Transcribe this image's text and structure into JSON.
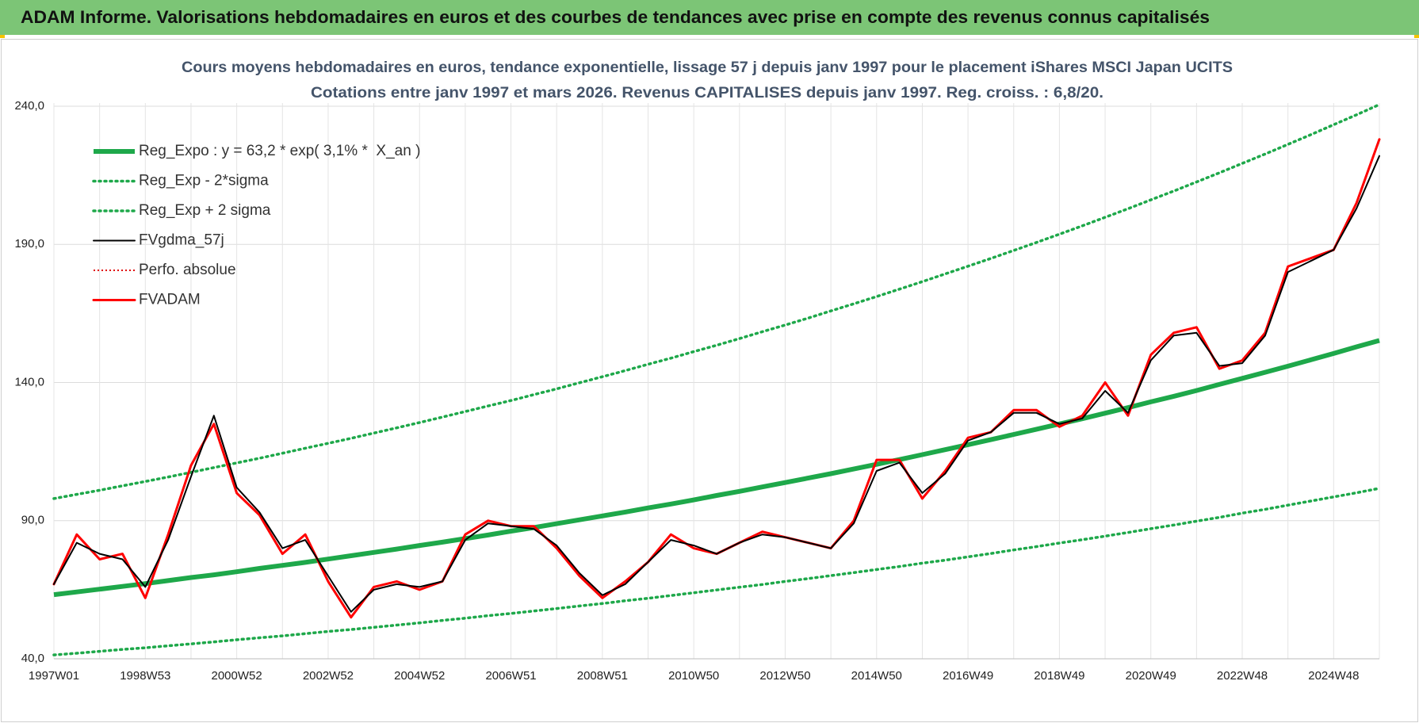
{
  "header": {
    "title": "ADAM Informe. Valorisations hebdomadaires en euros et des courbes de tendances avec prise en compte des revenus connus capitalisés"
  },
  "chart_data": {
    "type": "line",
    "title": "Cours moyens hebdomadaires en euros, tendance exponentielle, lissage 57 j depuis janv 1997 pour le placement iShares MSCI Japan UCITS",
    "subtitle": "Cotations entre janv 1997 et mars 2026. Revenus CAPITALISES depuis janv 1997. Reg. croiss. : 6,8/20.",
    "categories": [
      "1997W01",
      null,
      null,
      null,
      "1998W53",
      null,
      null,
      null,
      "2000W52",
      null,
      null,
      null,
      "2002W52",
      null,
      null,
      null,
      "2004W52",
      null,
      null,
      null,
      "2006W51",
      null,
      null,
      null,
      "2008W51",
      null,
      null,
      null,
      "2010W50",
      null,
      null,
      null,
      "2012W50",
      null,
      null,
      null,
      "2014W50",
      null,
      null,
      null,
      "2016W49",
      null,
      null,
      null,
      "2018W49",
      null,
      null,
      null,
      "2020W49",
      null,
      null,
      null,
      "2022W48",
      null,
      null,
      null,
      "2024W48",
      null,
      null
    ],
    "series": [
      {
        "name": "Reg_Expo : y = 63,2 * exp( 3,1% *  X_an )",
        "color": "#1ea84a",
        "style": "solid-thick",
        "values": [
          63.2,
          64.2,
          65.2,
          66.2,
          67.2,
          68.3,
          69.4,
          70.4,
          71.5,
          72.7,
          73.8,
          74.9,
          76.1,
          77.3,
          78.5,
          79.7,
          81.0,
          82.2,
          83.5,
          84.8,
          86.2,
          87.5,
          88.9,
          90.3,
          91.7,
          93.1,
          94.6,
          96.0,
          97.5,
          99.1,
          100.6,
          102.2,
          103.8,
          105.4,
          107.0,
          108.7,
          110.4,
          112.1,
          113.9,
          115.7,
          117.5,
          119.3,
          121.2,
          123.1,
          125.0,
          126.9,
          128.9,
          130.9,
          133.0,
          135.0,
          137.1,
          139.3,
          141.5,
          143.7,
          145.9,
          148.2,
          150.5,
          152.9,
          155.2
        ]
      },
      {
        "name": "Reg_Exp - 2*sigma",
        "color": "#1ea84a",
        "style": "dotted",
        "values": [
          41.4,
          42.0,
          42.7,
          43.4,
          44.0,
          44.7,
          45.4,
          46.1,
          46.9,
          47.6,
          48.3,
          49.1,
          49.9,
          50.6,
          51.4,
          52.2,
          53.0,
          53.9,
          54.7,
          55.6,
          56.4,
          57.3,
          58.2,
          59.1,
          60.0,
          61.0,
          61.9,
          62.9,
          63.9,
          64.9,
          65.9,
          66.9,
          68.0,
          69.0,
          70.1,
          71.2,
          72.3,
          73.4,
          74.6,
          75.7,
          76.9,
          78.1,
          79.4,
          80.6,
          81.9,
          83.1,
          84.4,
          85.7,
          87.1,
          88.4,
          89.8,
          91.2,
          92.7,
          94.1,
          95.6,
          97.1,
          98.6,
          100.1,
          101.7
        ]
      },
      {
        "name": "Reg_Exp + 2 sigma",
        "color": "#1ea84a",
        "style": "dotted",
        "values": [
          98.0,
          99.5,
          101.0,
          102.6,
          104.2,
          105.8,
          107.5,
          109.2,
          110.9,
          112.6,
          114.4,
          116.2,
          118.0,
          119.8,
          121.7,
          123.6,
          125.5,
          127.5,
          129.5,
          131.5,
          133.5,
          135.6,
          137.7,
          139.9,
          142.1,
          144.3,
          146.6,
          148.8,
          151.2,
          153.5,
          155.9,
          158.4,
          160.8,
          163.3,
          165.9,
          168.5,
          171.1,
          173.8,
          176.5,
          179.3,
          182.1,
          184.9,
          187.8,
          190.7,
          193.7,
          196.7,
          199.8,
          202.9,
          206.1,
          209.3,
          212.6,
          215.9,
          219.3,
          222.7,
          226.2,
          229.7,
          233.3,
          236.9,
          240.6
        ]
      },
      {
        "name": "FVgdma_57j",
        "color": "#000000",
        "style": "solid",
        "values": [
          67,
          82,
          78,
          76,
          66,
          83,
          106,
          128,
          102,
          93,
          80,
          83,
          70,
          57,
          65,
          67,
          66,
          68,
          83,
          89,
          88,
          87,
          81,
          71,
          63,
          67,
          75,
          83,
          81,
          78,
          82,
          85,
          84,
          82,
          80,
          89,
          108,
          111,
          100,
          107,
          119,
          122,
          129,
          129,
          125,
          127,
          137,
          129,
          148,
          157,
          158,
          146,
          147,
          157,
          180,
          184,
          188,
          203,
          222
        ]
      },
      {
        "name": "Perfo. absolue",
        "color": "#e00000",
        "style": "dotted-thin",
        "values": [
          null,
          null,
          null,
          null,
          null,
          null,
          null,
          null,
          null,
          null,
          null,
          null,
          null,
          null,
          null,
          null,
          null,
          null,
          null,
          null,
          null,
          null,
          null,
          null,
          null,
          null,
          null,
          null,
          null,
          null,
          null,
          null,
          null,
          null,
          null,
          null,
          null,
          null,
          null,
          null,
          null,
          null,
          null,
          null,
          null,
          null,
          null,
          null,
          null,
          null,
          null,
          null,
          null,
          null,
          null,
          null,
          null,
          null,
          null
        ]
      },
      {
        "name": "FVADAM",
        "color": "#ff0000",
        "style": "solid-red",
        "values": [
          67,
          85,
          76,
          78,
          62,
          85,
          110,
          125,
          100,
          92,
          78,
          85,
          68,
          55,
          66,
          68,
          65,
          68,
          85,
          90,
          88,
          88,
          80,
          70,
          62,
          68,
          75,
          85,
          80,
          78,
          82,
          86,
          84,
          82,
          80,
          90,
          112,
          112,
          98,
          108,
          120,
          122,
          130,
          130,
          124,
          128,
          140,
          128,
          150,
          158,
          160,
          145,
          148,
          158,
          182,
          185,
          188,
          205,
          228
        ]
      }
    ],
    "ylim": [
      40,
      240
    ],
    "yticks": [
      {
        "value": 40,
        "label": "40,0"
      },
      {
        "value": 90,
        "label": "90,0"
      },
      {
        "value": 140,
        "label": "140,0"
      },
      {
        "value": 190,
        "label": "190,0"
      },
      {
        "value": 240,
        "label": "240,0"
      }
    ],
    "grid": true,
    "legend": "upper left"
  }
}
